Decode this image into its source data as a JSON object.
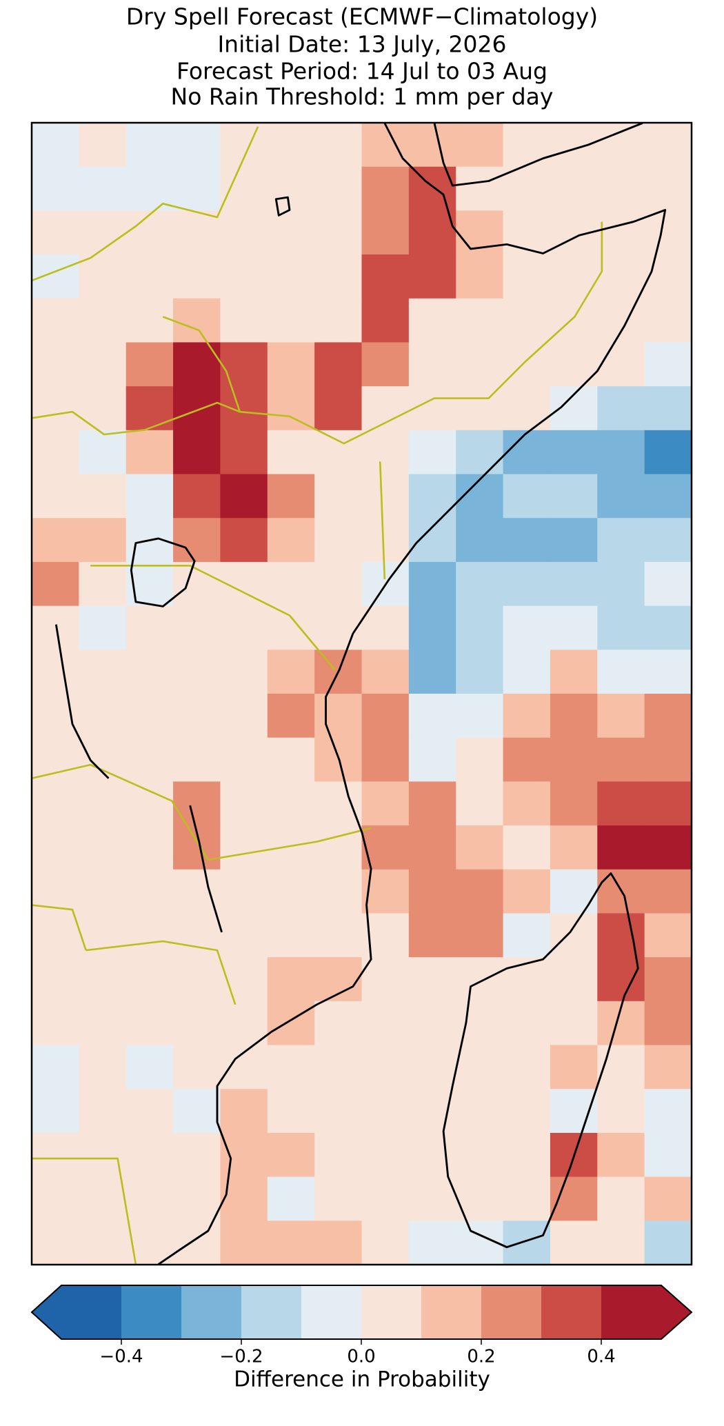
{
  "chart_data": {
    "type": "heatmap",
    "title": "Dry Spell Forecast (ECMWF−Climatology)",
    "subtitles": [
      "Initial Date: 13 July, 2026",
      "Forecast Period: 14 Jul to 03 Aug",
      "No Rain Threshold: 1 mm per day"
    ],
    "values": [
      [
        -0.05,
        0.05,
        -0.05,
        -0.05,
        0.05,
        0.05,
        0.05,
        0.15,
        0.15,
        0.15,
        0.05,
        0.05,
        0.05,
        0.05
      ],
      [
        -0.05,
        -0.05,
        -0.05,
        -0.05,
        0.05,
        0.05,
        0.05,
        0.25,
        0.35,
        0.05,
        0.05,
        0.05,
        0.05,
        0.05
      ],
      [
        0.05,
        0.05,
        0.05,
        0.05,
        0.05,
        0.05,
        0.05,
        0.25,
        0.35,
        0.15,
        0.05,
        0.05,
        0.05,
        0.05
      ],
      [
        -0.05,
        0.05,
        0.05,
        0.05,
        0.05,
        0.05,
        0.05,
        0.35,
        0.35,
        0.15,
        0.05,
        0.05,
        0.05,
        0.05
      ],
      [
        0.05,
        0.05,
        0.05,
        0.15,
        0.05,
        0.05,
        0.05,
        0.35,
        0.05,
        0.05,
        0.05,
        0.05,
        0.05,
        0.05
      ],
      [
        0.05,
        0.05,
        0.25,
        0.45,
        0.35,
        0.15,
        0.35,
        0.25,
        0.05,
        0.05,
        0.05,
        0.05,
        0.05,
        -0.05
      ],
      [
        0.05,
        0.05,
        0.35,
        0.45,
        0.35,
        0.15,
        0.35,
        0.05,
        0.05,
        0.05,
        0.05,
        -0.05,
        -0.15,
        -0.15
      ],
      [
        0.05,
        -0.05,
        0.15,
        0.45,
        0.35,
        0.05,
        0.05,
        0.05,
        -0.05,
        -0.15,
        -0.25,
        -0.25,
        -0.25,
        -0.35
      ],
      [
        0.05,
        0.05,
        -0.05,
        0.35,
        0.45,
        0.25,
        0.05,
        0.05,
        -0.15,
        -0.25,
        -0.15,
        -0.15,
        -0.25,
        -0.25
      ],
      [
        0.15,
        0.15,
        -0.05,
        0.25,
        0.35,
        0.15,
        0.05,
        0.05,
        -0.15,
        -0.25,
        -0.25,
        -0.25,
        -0.15,
        -0.15
      ],
      [
        0.25,
        0.05,
        -0.05,
        0.05,
        0.05,
        0.05,
        0.05,
        -0.05,
        -0.25,
        -0.15,
        -0.15,
        -0.15,
        -0.15,
        -0.05
      ],
      [
        0.05,
        -0.05,
        0.05,
        0.05,
        0.05,
        0.05,
        0.05,
        0.05,
        -0.25,
        -0.15,
        -0.05,
        -0.05,
        -0.15,
        -0.15
      ],
      [
        0.05,
        0.05,
        0.05,
        0.05,
        0.05,
        0.15,
        0.25,
        0.15,
        -0.25,
        -0.15,
        -0.05,
        0.15,
        -0.05,
        -0.05
      ],
      [
        0.05,
        0.05,
        0.05,
        0.05,
        0.05,
        0.25,
        0.15,
        0.25,
        -0.05,
        -0.05,
        0.15,
        0.25,
        0.15,
        0.25
      ],
      [
        0.05,
        0.05,
        0.05,
        0.05,
        0.05,
        0.05,
        0.15,
        0.25,
        -0.05,
        0.05,
        0.25,
        0.25,
        0.25,
        0.25
      ],
      [
        0.05,
        0.05,
        0.05,
        0.25,
        0.05,
        0.05,
        0.05,
        0.15,
        0.25,
        0.05,
        0.15,
        0.25,
        0.35,
        0.35
      ],
      [
        0.05,
        0.05,
        0.05,
        0.25,
        0.05,
        0.05,
        0.05,
        0.25,
        0.25,
        0.15,
        0.05,
        0.15,
        0.45,
        0.45
      ],
      [
        0.05,
        0.05,
        0.05,
        0.05,
        0.05,
        0.05,
        0.05,
        0.15,
        0.25,
        0.25,
        0.15,
        -0.05,
        0.25,
        0.25
      ],
      [
        0.05,
        0.05,
        0.05,
        0.05,
        0.05,
        0.05,
        0.05,
        0.05,
        0.25,
        0.25,
        -0.05,
        0.05,
        0.35,
        0.15
      ],
      [
        0.05,
        0.05,
        0.05,
        0.05,
        0.05,
        0.15,
        0.15,
        0.05,
        0.05,
        0.05,
        0.05,
        0.05,
        0.35,
        0.25
      ],
      [
        0.05,
        0.05,
        0.05,
        0.05,
        0.05,
        0.15,
        0.05,
        0.05,
        0.05,
        0.05,
        0.05,
        0.05,
        0.15,
        0.25
      ],
      [
        -0.05,
        0.05,
        -0.05,
        0.05,
        0.05,
        0.05,
        0.05,
        0.05,
        0.05,
        0.05,
        0.05,
        0.15,
        0.05,
        0.15
      ],
      [
        -0.05,
        0.05,
        0.05,
        -0.05,
        0.15,
        0.05,
        0.05,
        0.05,
        0.05,
        0.05,
        0.05,
        -0.05,
        0.05,
        -0.05
      ],
      [
        0.05,
        0.05,
        0.05,
        0.05,
        0.15,
        0.15,
        0.05,
        0.05,
        0.05,
        0.05,
        0.05,
        0.35,
        0.15,
        -0.05
      ],
      [
        0.05,
        0.05,
        0.05,
        0.05,
        0.15,
        -0.05,
        0.05,
        0.05,
        0.05,
        0.05,
        0.05,
        0.25,
        0.05,
        0.15
      ],
      [
        0.05,
        0.05,
        0.05,
        0.05,
        0.15,
        0.15,
        0.15,
        0.05,
        -0.05,
        -0.05,
        -0.15,
        0.05,
        0.05,
        -0.15
      ]
    ],
    "colorbar": {
      "label": "Difference in Probability",
      "lim": [
        -0.5,
        0.5
      ],
      "bounds": [
        -0.5,
        -0.4,
        -0.3,
        -0.2,
        -0.1,
        0,
        0.1,
        0.2,
        0.3,
        0.4,
        0.5
      ],
      "colors": [
        "#1f63a8",
        "#3c8bc3",
        "#7ab5d9",
        "#b8d7e9",
        "#e3edf3",
        "#f9e4da",
        "#f7bfa5",
        "#e58c72",
        "#cb4d45",
        "#a81a2c"
      ],
      "ticks": [
        {
          "value": -0.4,
          "label": "−0.4"
        },
        {
          "value": -0.2,
          "label": "−0.2"
        },
        {
          "value": 0,
          "label": "0.0"
        },
        0.2,
        0.4
      ]
    }
  }
}
